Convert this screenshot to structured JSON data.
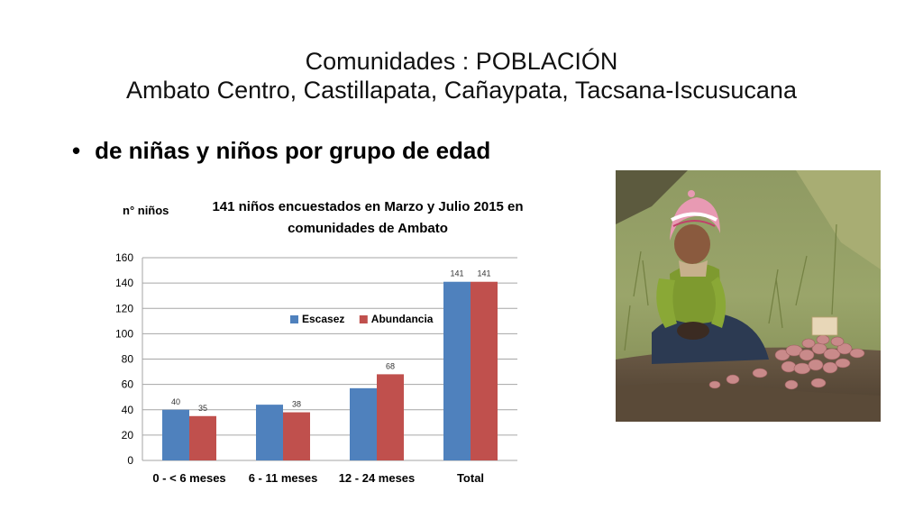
{
  "slide": {
    "title_line1": "Comunidades : POBLACIÓN",
    "title_line2": "Ambato Centro, Castillapata, Cañaypata, Tacsana-Iscusucana",
    "bullet": "de niñas y niños por grupo de edad"
  },
  "chart_data": {
    "type": "bar",
    "title": "141 niños encuestados en Marzo y Julio 2015 en comunidades de Ambato",
    "title_lines": [
      "141 niños encuestados en Marzo y Julio 2015 en",
      "comunidades de Ambato"
    ],
    "ylabel": "n° niños",
    "xlabel": "",
    "categories": [
      "0 - < 6 meses",
      "6 - 11 meses",
      "12 - 24 meses",
      "Total"
    ],
    "series": [
      {
        "name": "Escasez",
        "values": [
          40,
          44,
          57,
          141
        ],
        "labels": [
          "40",
          "",
          "",
          "141"
        ],
        "color": "#4F81BD"
      },
      {
        "name": "Abundancia",
        "values": [
          35,
          38,
          68,
          141
        ],
        "labels": [
          "35",
          "38",
          "68",
          "141"
        ],
        "color": "#C0504D"
      }
    ],
    "ylim": [
      0,
      160
    ],
    "yticks": [
      0,
      20,
      40,
      60,
      80,
      100,
      120,
      140,
      160
    ],
    "grid": true,
    "legend_position": "inside-center"
  },
  "colors": {
    "escasez": "#4F81BD",
    "abundancia": "#C0504D",
    "grid": "#A6A6A6"
  },
  "photo": {
    "icon": "photo-child-harvesting-potatoes"
  }
}
